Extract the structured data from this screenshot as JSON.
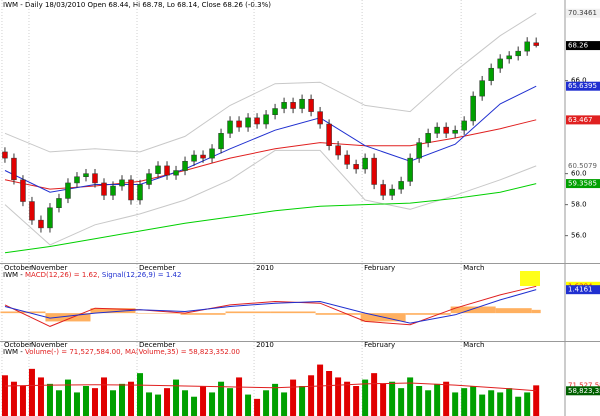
{
  "chart_data": [
    {
      "type": "candlestick",
      "title": "IWM - Daily 18/03/2010 Open 68.44, Hi 68.78, Lo 68.14, Close 68.26 (-0.3%)",
      "x": [
        0,
        1,
        2,
        3,
        4,
        5,
        6,
        7,
        8,
        9,
        10,
        11,
        12,
        13,
        14,
        15,
        16,
        17,
        18,
        19,
        20,
        21,
        22,
        23,
        24,
        25,
        26,
        27,
        28,
        29,
        30,
        31,
        32,
        33,
        34,
        35,
        36,
        37,
        38,
        39,
        40,
        41,
        42,
        43,
        44,
        45,
        46,
        47,
        48,
        49,
        50,
        51,
        52,
        53,
        54,
        55,
        56,
        57,
        58,
        59
      ],
      "open": [
        61.4,
        61.0,
        59.6,
        58.2,
        57.0,
        56.5,
        57.8,
        58.4,
        59.4,
        59.8,
        60.0,
        59.4,
        58.6,
        59.2,
        59.6,
        58.3,
        59.3,
        60.0,
        60.5,
        59.9,
        60.2,
        60.8,
        61.2,
        61.0,
        61.6,
        62.6,
        63.4,
        63.0,
        63.6,
        63.2,
        63.8,
        64.2,
        64.6,
        64.2,
        64.8,
        64.0,
        63.2,
        61.8,
        61.2,
        60.6,
        60.3,
        61.0,
        59.3,
        58.6,
        59.0,
        59.5,
        61.0,
        62.0,
        62.6,
        63.0,
        62.6,
        62.8,
        63.4,
        65.0,
        66.0,
        66.8,
        67.4,
        67.6,
        67.9,
        68.44
      ],
      "high": [
        61.7,
        61.3,
        59.9,
        58.5,
        57.3,
        58.1,
        58.7,
        59.7,
        60.1,
        60.3,
        60.3,
        59.7,
        59.5,
        59.9,
        59.9,
        59.6,
        60.3,
        60.8,
        60.8,
        60.5,
        61.1,
        61.5,
        61.5,
        61.9,
        62.9,
        63.7,
        63.7,
        63.9,
        63.9,
        64.1,
        64.5,
        64.9,
        64.9,
        65.1,
        65.1,
        64.3,
        63.5,
        62.1,
        61.5,
        60.9,
        61.3,
        61.3,
        59.6,
        59.3,
        59.8,
        61.3,
        62.3,
        62.9,
        63.3,
        63.3,
        63.1,
        63.7,
        65.3,
        66.3,
        67.1,
        67.7,
        67.9,
        68.2,
        68.8,
        68.78
      ],
      "low": [
        60.7,
        59.3,
        57.9,
        56.7,
        56.2,
        56.2,
        57.5,
        58.1,
        59.1,
        59.5,
        59.1,
        58.3,
        58.3,
        58.9,
        58.0,
        58.0,
        59.0,
        59.7,
        59.6,
        59.6,
        59.9,
        60.5,
        60.7,
        60.7,
        61.3,
        62.3,
        62.7,
        62.7,
        62.9,
        62.9,
        63.5,
        63.9,
        63.9,
        63.9,
        63.7,
        62.9,
        61.5,
        60.9,
        60.3,
        60.0,
        60.0,
        59.0,
        58.3,
        58.3,
        58.7,
        59.2,
        60.7,
        61.7,
        62.3,
        62.3,
        62.3,
        62.5,
        63.1,
        64.7,
        65.7,
        66.5,
        67.1,
        67.3,
        67.6,
        68.14
      ],
      "close": [
        61.0,
        59.6,
        58.2,
        57.0,
        56.5,
        57.8,
        58.4,
        59.4,
        59.8,
        60.0,
        59.4,
        58.6,
        59.2,
        59.6,
        58.3,
        59.3,
        60.0,
        60.5,
        59.9,
        60.2,
        60.8,
        61.2,
        61.0,
        61.6,
        62.6,
        63.4,
        63.0,
        63.6,
        63.2,
        63.8,
        64.2,
        64.6,
        64.2,
        64.8,
        64.0,
        63.2,
        61.8,
        61.2,
        60.6,
        60.3,
        61.0,
        59.3,
        58.6,
        59.0,
        59.5,
        61.0,
        62.0,
        62.6,
        63.0,
        62.6,
        62.8,
        63.4,
        65.0,
        66.0,
        66.8,
        67.4,
        67.6,
        67.9,
        68.5,
        68.26
      ],
      "up_color": "#00a000",
      "down_color": "#e00000",
      "xlim": [
        -0.55,
        62.2
      ],
      "ylim": [
        54.3,
        71.2
      ],
      "yticks": [
        {
          "value": 56,
          "label": "56.0"
        },
        {
          "value": 58,
          "label": "58.0"
        },
        {
          "value": 60,
          "label": "60.0"
        },
        {
          "value": 66,
          "label": "66.0"
        }
      ],
      "date_labels": [
        "October",
        "November",
        "December",
        "2010",
        "February",
        "March"
      ],
      "date_x": [
        0,
        3,
        15,
        28,
        40,
        51
      ],
      "lines": [
        {
          "color": "#c8c8c8",
          "x": [
            0,
            5,
            10,
            15,
            20,
            25,
            30,
            35,
            40,
            45,
            50,
            55,
            59
          ],
          "values": [
            62.6,
            61.4,
            61.6,
            61.4,
            62.4,
            64.4,
            65.8,
            65.9,
            64.4,
            64.0,
            66.6,
            68.9,
            70.35
          ]
        },
        {
          "color": "#c8c8c8",
          "x": [
            0,
            5,
            10,
            15,
            20,
            25,
            30,
            35,
            40,
            45,
            50,
            55,
            59
          ],
          "values": [
            58.0,
            55.4,
            56.7,
            57.4,
            58.3,
            59.6,
            61.5,
            61.5,
            58.3,
            57.7,
            58.6,
            59.6,
            60.5
          ]
        },
        {
          "color": "#00d000",
          "x": [
            0,
            5,
            10,
            15,
            20,
            25,
            30,
            35,
            40,
            45,
            50,
            55,
            59
          ],
          "values": [
            54.9,
            55.3,
            55.8,
            56.3,
            56.8,
            57.2,
            57.6,
            57.9,
            58.0,
            58.1,
            58.4,
            58.8,
            59.36
          ]
        },
        {
          "color": "#e02020",
          "x": [
            0,
            5,
            10,
            15,
            20,
            25,
            30,
            35,
            40,
            45,
            50,
            55,
            59
          ],
          "values": [
            59.6,
            59.0,
            59.2,
            59.5,
            60.2,
            61.0,
            61.6,
            62.0,
            61.8,
            61.8,
            62.3,
            62.9,
            63.47
          ]
        },
        {
          "color": "#2030d0",
          "x": [
            0,
            5,
            10,
            15,
            20,
            25,
            30,
            35,
            40,
            45,
            50,
            55,
            59
          ],
          "values": [
            60.2,
            58.8,
            59.3,
            59.3,
            60.3,
            61.6,
            62.8,
            63.6,
            61.8,
            60.8,
            61.9,
            64.5,
            65.64
          ]
        }
      ],
      "annotations": [
        {
          "value": 70.3461,
          "color": "#f0f0f0",
          "text_color": "#404040"
        },
        {
          "value": 68.26,
          "color": "#000000",
          "text_color": "#ffffff"
        },
        {
          "value": 65.6395,
          "color": "#2030d0",
          "text_color": "#ffffff"
        },
        {
          "value": 63.467,
          "color": "#e02020",
          "text_color": "#ffffff"
        },
        {
          "value": 60.5079,
          "color": "#ffffff",
          "text_color": "#606060"
        },
        {
          "value": 59.3585,
          "color": "#00a000",
          "text_color": "#ffffff"
        }
      ]
    },
    {
      "type": "macd",
      "title": "IWM -",
      "ylim": [
        -1.5,
        2.0
      ],
      "series": [
        {
          "name": "MACD(12,26) = 1.62,",
          "color": "#e02020",
          "x": [
            0,
            5,
            10,
            15,
            20,
            25,
            30,
            35,
            40,
            45,
            50,
            55,
            59
          ],
          "values": [
            0.5,
            -0.8,
            0.3,
            0.2,
            0.0,
            0.5,
            0.7,
            0.6,
            -0.5,
            -0.7,
            0.3,
            1.1,
            1.62
          ]
        },
        {
          "name": "Signal(12,26,9) = 1.42",
          "color": "#2030d0",
          "x": [
            0,
            5,
            10,
            15,
            20,
            25,
            30,
            35,
            40,
            45,
            50,
            55,
            59
          ],
          "values": [
            0.4,
            -0.3,
            0.0,
            0.2,
            0.1,
            0.4,
            0.6,
            0.7,
            0.0,
            -0.6,
            -0.1,
            0.8,
            1.42
          ]
        }
      ],
      "histogram": {
        "color": "#ffb060",
        "x": [
          0,
          5,
          10,
          15,
          20,
          25,
          30,
          35,
          40,
          45,
          50,
          55,
          59
        ],
        "values": [
          0.1,
          -0.5,
          0.3,
          0.0,
          -0.1,
          0.1,
          0.1,
          -0.1,
          -0.5,
          -0.1,
          0.4,
          0.3,
          0.2
        ]
      },
      "annotations": [
        {
          "value": 1.6204,
          "color": "#ffff00",
          "text_color": "#e02020"
        },
        {
          "value": 1.4161,
          "color": "#2030d0",
          "text_color": "#ffffff"
        }
      ]
    },
    {
      "type": "volume",
      "title": "IWM -",
      "ylim": [
        0,
        140000000
      ],
      "series": [
        {
          "name": "Volume(-) = 71,527,584.00,",
          "color": "#e02020",
          "values": [
            95000000,
            80000000,
            70000000,
            110000000,
            90000000,
            75000000,
            60000000,
            85000000,
            55000000,
            70000000,
            65000000,
            90000000,
            60000000,
            75000000,
            80000000,
            100000000,
            55000000,
            50000000,
            65000000,
            85000000,
            60000000,
            45000000,
            70000000,
            55000000,
            80000000,
            65000000,
            90000000,
            50000000,
            40000000,
            60000000,
            75000000,
            55000000,
            85000000,
            70000000,
            95000000,
            120000000,
            105000000,
            90000000,
            80000000,
            70000000,
            85000000,
            100000000,
            75000000,
            80000000,
            65000000,
            90000000,
            70000000,
            60000000,
            75000000,
            80000000,
            55000000,
            65000000,
            70000000,
            50000000,
            60000000,
            55000000,
            65000000,
            45000000,
            55000000,
            71527584
          ]
        },
        {
          "name": "MA(Volume,35) = 58,823,352.00",
          "color": "#e02020",
          "x": [
            0,
            5,
            10,
            15,
            20,
            25,
            30,
            35,
            40,
            45,
            50,
            55,
            59
          ],
          "values": [
            70000000,
            72000000,
            73000000,
            72000000,
            70000000,
            68000000,
            66000000,
            70000000,
            75000000,
            77000000,
            72000000,
            65000000,
            58823352
          ]
        }
      ],
      "annotations": [
        {
          "value": 71527584,
          "label": "71,527,584",
          "color": "#ffffff",
          "text_color": "#e02020"
        },
        {
          "value": 58823352,
          "label": "58,823,352",
          "color": "#006000",
          "text_color": "#ffffff"
        }
      ]
    }
  ]
}
